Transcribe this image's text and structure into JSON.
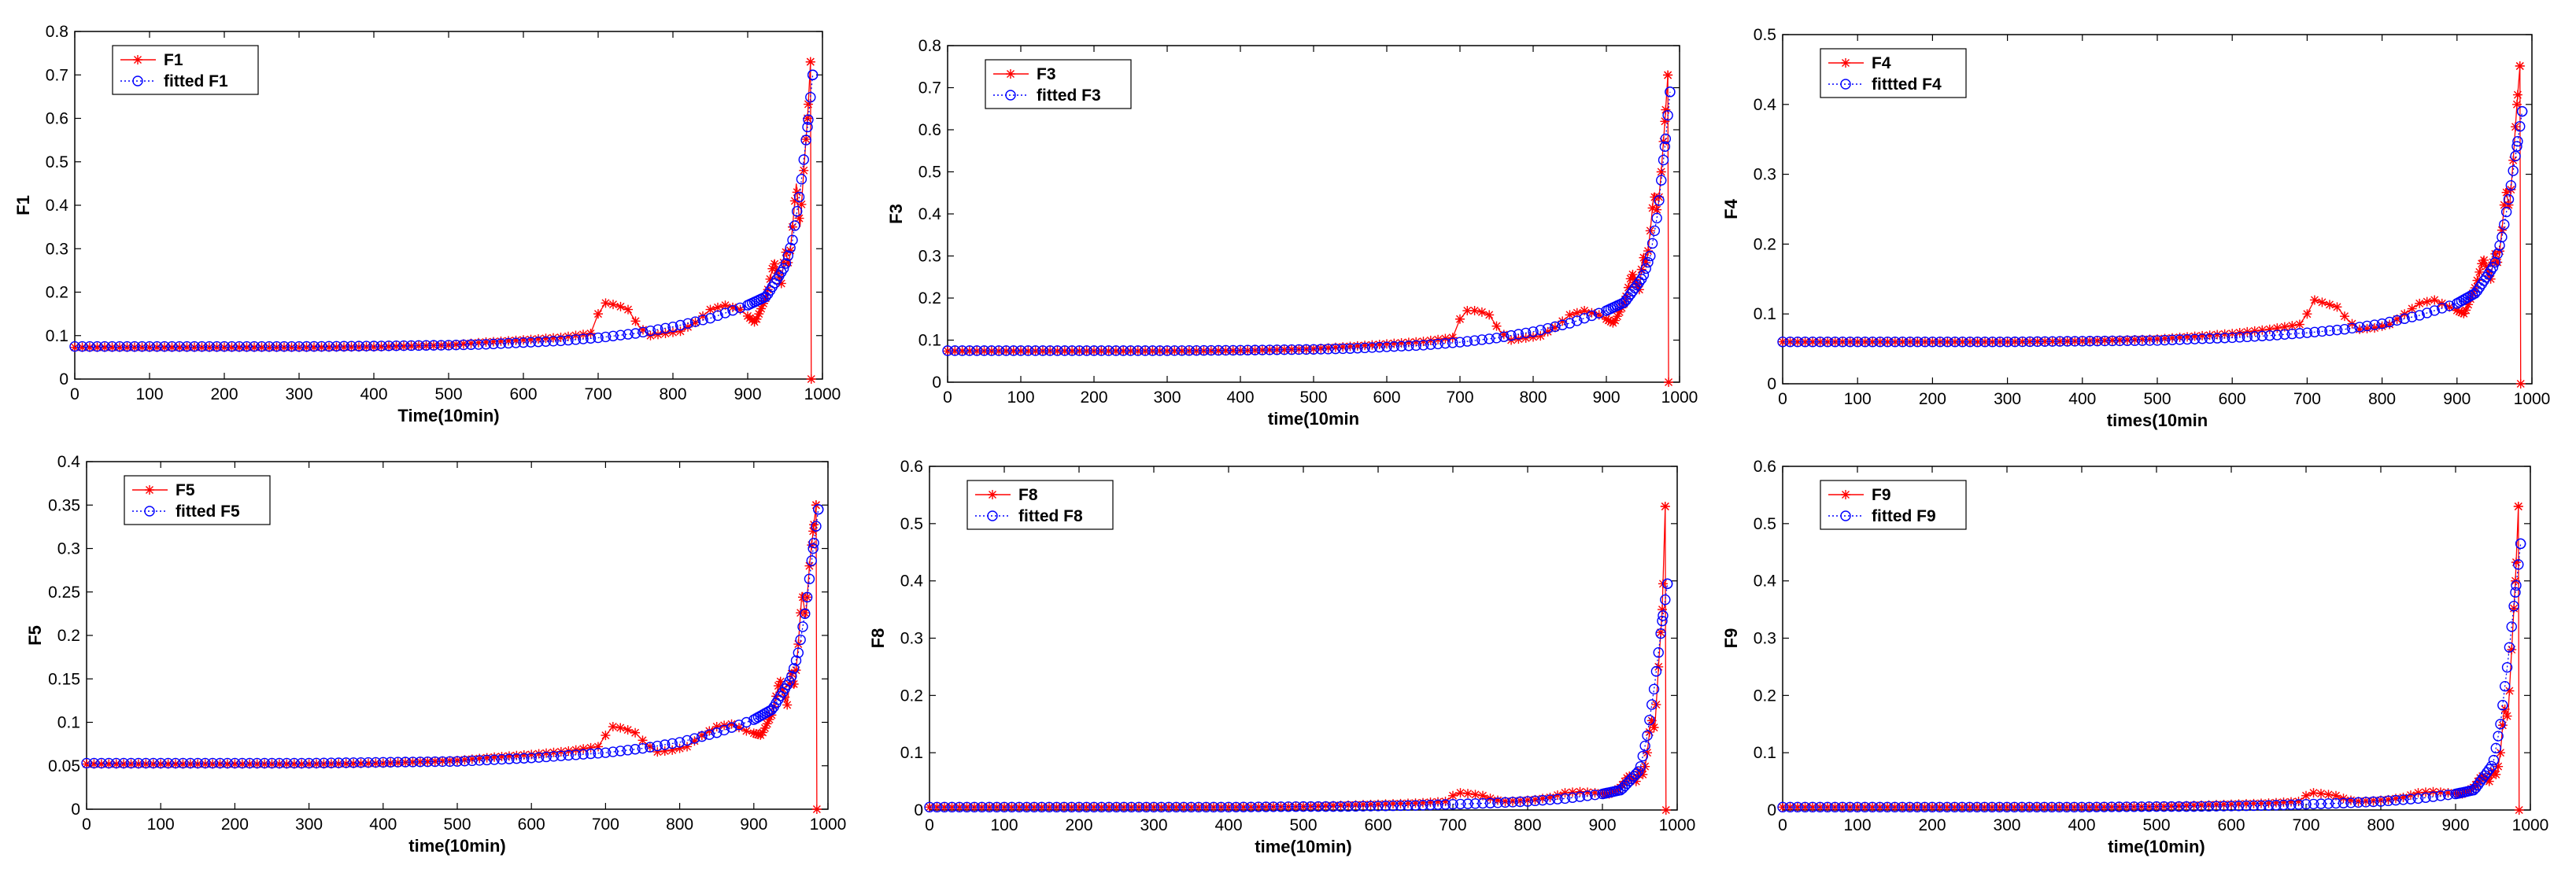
{
  "figure": {
    "background": "#ffffff",
    "series_colors": {
      "observed": "#ff0000",
      "fitted": "#0000ff"
    }
  },
  "chart_data": [
    {
      "type": "line",
      "panel": "F1",
      "ylabel": "F1",
      "xlabel": "Time(10min)",
      "xlim": [
        0,
        1000
      ],
      "ylim": [
        0,
        0.8
      ],
      "xticks": [
        "0",
        "100",
        "200",
        "300",
        "400",
        "500",
        "600",
        "700",
        "800",
        "900",
        "1000"
      ],
      "yticks": [
        "0",
        "0.1",
        "0.2",
        "0.3",
        "0.4",
        "0.5",
        "0.6",
        "0.7",
        "0.8"
      ],
      "legend": {
        "placement": "top-left",
        "labels": [
          "F1",
          "fitted F1"
        ]
      },
      "series": [
        {
          "name": "F1",
          "kind": "observed",
          "color": "#ff0000",
          "marker": "asterisk",
          "x": [
            0,
            100,
            200,
            300,
            400,
            500,
            550,
            600,
            650,
            690,
            700,
            710,
            725,
            740,
            755,
            770,
            790,
            810,
            830,
            850,
            870,
            890,
            910,
            925,
            935,
            945,
            950,
            955,
            960,
            965,
            970,
            975,
            980,
            984,
            985
          ],
          "y": [
            0.073,
            0.073,
            0.073,
            0.073,
            0.074,
            0.078,
            0.085,
            0.09,
            0.096,
            0.105,
            0.15,
            0.175,
            0.17,
            0.16,
            0.12,
            0.1,
            0.105,
            0.11,
            0.13,
            0.16,
            0.17,
            0.16,
            0.13,
            0.19,
            0.27,
            0.22,
            0.3,
            0.26,
            0.35,
            0.45,
            0.35,
            0.48,
            0.6,
            0.73,
            0.0
          ]
        },
        {
          "name": "fitted F1",
          "kind": "fitted",
          "color": "#0000ff",
          "marker": "circle",
          "x": [
            0,
            100,
            200,
            300,
            400,
            500,
            550,
            600,
            650,
            700,
            750,
            800,
            850,
            900,
            925,
            950,
            960,
            970,
            980,
            987
          ],
          "y": [
            0.075,
            0.075,
            0.075,
            0.075,
            0.076,
            0.078,
            0.08,
            0.084,
            0.088,
            0.095,
            0.105,
            0.12,
            0.14,
            0.17,
            0.19,
            0.26,
            0.32,
            0.43,
            0.58,
            0.7
          ]
        }
      ]
    },
    {
      "type": "line",
      "panel": "F3",
      "ylabel": "F3",
      "xlabel": "time(10min",
      "xlim": [
        0,
        1000
      ],
      "ylim": [
        0,
        0.8
      ],
      "xticks": [
        "0",
        "100",
        "200",
        "300",
        "400",
        "500",
        "600",
        "700",
        "800",
        "900",
        "1000"
      ],
      "yticks": [
        "0",
        "0.1",
        "0.2",
        "0.3",
        "0.4",
        "0.5",
        "0.6",
        "0.7",
        "0.8"
      ],
      "legend": {
        "placement": "top-left",
        "labels": [
          "F3",
          "fitted F3"
        ]
      },
      "series": [
        {
          "name": "F3",
          "kind": "observed",
          "color": "#ff0000",
          "marker": "asterisk",
          "x": [
            0,
            100,
            200,
            300,
            400,
            500,
            550,
            600,
            650,
            690,
            700,
            710,
            725,
            740,
            755,
            770,
            790,
            810,
            830,
            850,
            870,
            890,
            910,
            925,
            935,
            945,
            950,
            955,
            960,
            965,
            970,
            975,
            980,
            984,
            985
          ],
          "y": [
            0.074,
            0.074,
            0.074,
            0.074,
            0.075,
            0.079,
            0.085,
            0.091,
            0.097,
            0.106,
            0.15,
            0.17,
            0.17,
            0.16,
            0.12,
            0.1,
            0.105,
            0.11,
            0.13,
            0.16,
            0.17,
            0.16,
            0.14,
            0.19,
            0.26,
            0.22,
            0.3,
            0.28,
            0.36,
            0.45,
            0.4,
            0.5,
            0.62,
            0.73,
            0.0
          ]
        },
        {
          "name": "fitted F3",
          "kind": "fitted",
          "color": "#0000ff",
          "marker": "circle",
          "x": [
            0,
            100,
            200,
            300,
            400,
            500,
            550,
            600,
            650,
            700,
            750,
            800,
            850,
            900,
            925,
            950,
            960,
            970,
            980,
            987
          ],
          "y": [
            0.075,
            0.075,
            0.075,
            0.075,
            0.076,
            0.078,
            0.08,
            0.084,
            0.088,
            0.095,
            0.105,
            0.12,
            0.14,
            0.17,
            0.19,
            0.25,
            0.3,
            0.4,
            0.56,
            0.69
          ]
        }
      ]
    },
    {
      "type": "line",
      "panel": "F4",
      "ylabel": "F4",
      "xlabel": "times(10min",
      "xlim": [
        0,
        1000
      ],
      "ylim": [
        0,
        0.5
      ],
      "xticks": [
        "0",
        "100",
        "200",
        "300",
        "400",
        "500",
        "600",
        "700",
        "800",
        "900",
        "1000"
      ],
      "yticks": [
        "0",
        "0.1",
        "0.2",
        "0.3",
        "0.4",
        "0.5"
      ],
      "legend": {
        "placement": "top-left",
        "labels": [
          "F4",
          "fittted F4"
        ]
      },
      "series": [
        {
          "name": "F4",
          "kind": "observed",
          "color": "#ff0000",
          "marker": "asterisk",
          "x": [
            0,
            100,
            200,
            300,
            400,
            500,
            550,
            600,
            650,
            690,
            700,
            710,
            725,
            740,
            755,
            770,
            790,
            810,
            830,
            850,
            870,
            890,
            910,
            925,
            935,
            945,
            950,
            955,
            960,
            965,
            970,
            975,
            980,
            984,
            985
          ],
          "y": [
            0.06,
            0.06,
            0.06,
            0.06,
            0.061,
            0.064,
            0.068,
            0.072,
            0.078,
            0.085,
            0.1,
            0.12,
            0.115,
            0.11,
            0.09,
            0.078,
            0.08,
            0.085,
            0.1,
            0.115,
            0.12,
            0.11,
            0.1,
            0.14,
            0.18,
            0.15,
            0.19,
            0.17,
            0.22,
            0.28,
            0.25,
            0.32,
            0.4,
            0.455,
            0.0
          ]
        },
        {
          "name": "fittted F4",
          "kind": "fitted",
          "color": "#0000ff",
          "marker": "circle",
          "x": [
            0,
            100,
            200,
            300,
            400,
            500,
            550,
            600,
            650,
            700,
            750,
            800,
            850,
            900,
            925,
            950,
            960,
            970,
            980,
            987
          ],
          "y": [
            0.06,
            0.06,
            0.06,
            0.06,
            0.061,
            0.062,
            0.064,
            0.066,
            0.069,
            0.073,
            0.078,
            0.086,
            0.098,
            0.115,
            0.13,
            0.17,
            0.21,
            0.27,
            0.34,
            0.39
          ]
        }
      ]
    },
    {
      "type": "line",
      "panel": "F5",
      "ylabel": "F5",
      "xlabel": "time(10min)",
      "xlim": [
        0,
        1000
      ],
      "ylim": [
        0,
        0.4
      ],
      "xticks": [
        "0",
        "100",
        "200",
        "300",
        "400",
        "500",
        "600",
        "700",
        "800",
        "900",
        "1000"
      ],
      "yticks": [
        "0",
        "0.05",
        "0.1",
        "0.15",
        "0.2",
        "0.25",
        "0.3",
        "0.35",
        "0.4"
      ],
      "legend": {
        "placement": "top-left",
        "labels": [
          "F5",
          "fitted F5"
        ]
      },
      "series": [
        {
          "name": "F5",
          "kind": "observed",
          "color": "#ff0000",
          "marker": "asterisk",
          "x": [
            0,
            100,
            200,
            300,
            400,
            500,
            550,
            600,
            650,
            690,
            700,
            710,
            725,
            740,
            755,
            770,
            790,
            810,
            830,
            850,
            870,
            890,
            910,
            925,
            935,
            945,
            950,
            955,
            960,
            965,
            970,
            975,
            980,
            984,
            985
          ],
          "y": [
            0.052,
            0.052,
            0.052,
            0.052,
            0.053,
            0.056,
            0.06,
            0.063,
            0.067,
            0.072,
            0.085,
            0.095,
            0.093,
            0.088,
            0.075,
            0.066,
            0.068,
            0.072,
            0.085,
            0.095,
            0.098,
            0.09,
            0.085,
            0.11,
            0.15,
            0.12,
            0.16,
            0.14,
            0.19,
            0.25,
            0.22,
            0.28,
            0.32,
            0.35,
            0.0
          ]
        },
        {
          "name": "fitted F5",
          "kind": "fitted",
          "color": "#0000ff",
          "marker": "circle",
          "x": [
            0,
            100,
            200,
            300,
            400,
            500,
            550,
            600,
            650,
            700,
            750,
            800,
            850,
            900,
            925,
            950,
            960,
            970,
            980,
            987
          ],
          "y": [
            0.053,
            0.053,
            0.053,
            0.053,
            0.054,
            0.055,
            0.057,
            0.059,
            0.062,
            0.065,
            0.07,
            0.077,
            0.088,
            0.103,
            0.115,
            0.15,
            0.18,
            0.23,
            0.3,
            0.345
          ]
        }
      ]
    },
    {
      "type": "line",
      "panel": "F8",
      "ylabel": "F8",
      "xlabel": "time(10min)",
      "xlim": [
        0,
        1000
      ],
      "ylim": [
        0,
        0.6
      ],
      "xticks": [
        "0",
        "100",
        "200",
        "300",
        "400",
        "500",
        "600",
        "700",
        "800",
        "900",
        "1000"
      ],
      "yticks": [
        "0",
        "0.1",
        "0.2",
        "0.3",
        "0.4",
        "0.5",
        "0.6"
      ],
      "legend": {
        "placement": "top-left",
        "labels": [
          "F8",
          "fitted F8"
        ]
      },
      "series": [
        {
          "name": "F8",
          "kind": "observed",
          "color": "#ff0000",
          "marker": "asterisk",
          "x": [
            0,
            100,
            200,
            300,
            400,
            500,
            550,
            600,
            650,
            690,
            700,
            710,
            725,
            740,
            755,
            770,
            790,
            810,
            830,
            850,
            870,
            890,
            910,
            925,
            935,
            945,
            950,
            955,
            960,
            965,
            970,
            975,
            980,
            984,
            985
          ],
          "y": [
            0.005,
            0.005,
            0.005,
            0.005,
            0.005,
            0.006,
            0.008,
            0.01,
            0.012,
            0.015,
            0.025,
            0.03,
            0.028,
            0.025,
            0.018,
            0.015,
            0.016,
            0.018,
            0.022,
            0.03,
            0.032,
            0.03,
            0.028,
            0.04,
            0.06,
            0.05,
            0.07,
            0.06,
            0.1,
            0.16,
            0.14,
            0.25,
            0.35,
            0.53,
            0.0
          ]
        },
        {
          "name": "fitted F8",
          "kind": "fitted",
          "color": "#0000ff",
          "marker": "circle",
          "x": [
            0,
            100,
            200,
            300,
            400,
            500,
            550,
            600,
            650,
            700,
            750,
            800,
            850,
            900,
            925,
            950,
            960,
            970,
            980,
            987
          ],
          "y": [
            0.005,
            0.005,
            0.005,
            0.005,
            0.005,
            0.006,
            0.006,
            0.007,
            0.008,
            0.01,
            0.012,
            0.015,
            0.02,
            0.028,
            0.035,
            0.07,
            0.13,
            0.22,
            0.33,
            0.395
          ]
        }
      ]
    },
    {
      "type": "line",
      "panel": "F9",
      "ylabel": "F9",
      "xlabel": "time(10min)",
      "xlim": [
        0,
        1000
      ],
      "ylim": [
        0,
        0.6
      ],
      "xticks": [
        "0",
        "100",
        "200",
        "300",
        "400",
        "500",
        "600",
        "700",
        "800",
        "900",
        "1000"
      ],
      "yticks": [
        "0",
        "0.1",
        "0.2",
        "0.3",
        "0.4",
        "0.5",
        "0.6"
      ],
      "legend": {
        "placement": "top-left",
        "labels": [
          "F9",
          "fitted F9"
        ]
      },
      "series": [
        {
          "name": "F9",
          "kind": "observed",
          "color": "#ff0000",
          "marker": "asterisk",
          "x": [
            0,
            100,
            200,
            300,
            400,
            500,
            550,
            600,
            650,
            690,
            700,
            710,
            725,
            740,
            755,
            770,
            790,
            810,
            830,
            850,
            870,
            890,
            910,
            925,
            935,
            945,
            950,
            955,
            960,
            965,
            970,
            975,
            980,
            984,
            985
          ],
          "y": [
            0.005,
            0.005,
            0.005,
            0.005,
            0.005,
            0.006,
            0.008,
            0.01,
            0.012,
            0.015,
            0.025,
            0.03,
            0.028,
            0.025,
            0.018,
            0.015,
            0.016,
            0.018,
            0.022,
            0.03,
            0.032,
            0.03,
            0.028,
            0.04,
            0.06,
            0.05,
            0.07,
            0.06,
            0.1,
            0.18,
            0.16,
            0.28,
            0.4,
            0.53,
            0.0
          ]
        },
        {
          "name": "fitted F9",
          "kind": "fitted",
          "color": "#0000ff",
          "marker": "circle",
          "x": [
            0,
            100,
            200,
            300,
            400,
            500,
            550,
            600,
            650,
            700,
            750,
            800,
            850,
            900,
            925,
            950,
            960,
            970,
            980,
            987
          ],
          "y": [
            0.005,
            0.005,
            0.005,
            0.005,
            0.005,
            0.006,
            0.006,
            0.007,
            0.008,
            0.01,
            0.012,
            0.015,
            0.02,
            0.028,
            0.035,
            0.08,
            0.15,
            0.26,
            0.38,
            0.465
          ]
        }
      ]
    }
  ]
}
